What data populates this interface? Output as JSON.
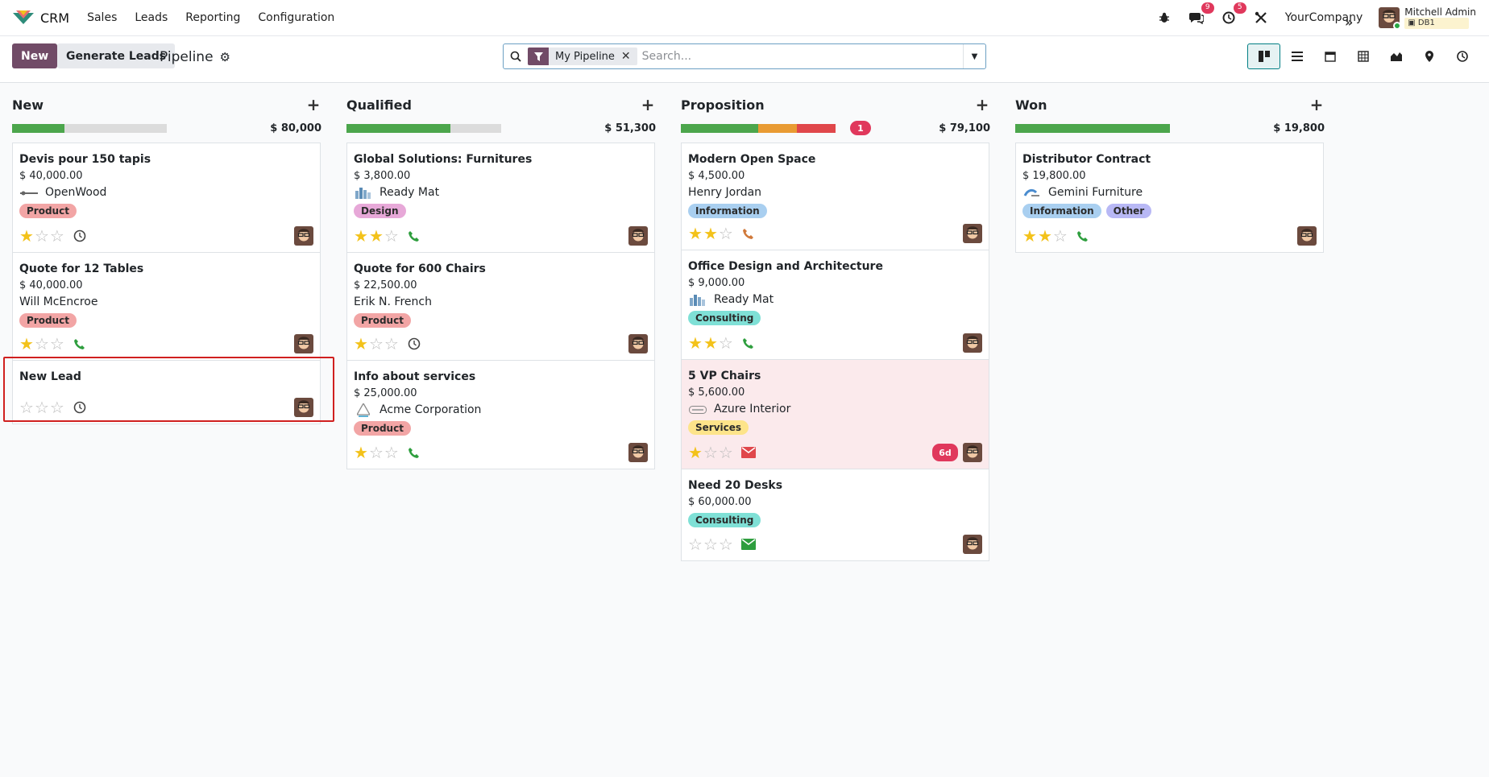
{
  "navbar": {
    "app_name": "CRM",
    "menu": [
      "Sales",
      "Leads",
      "Reporting",
      "Configuration"
    ],
    "messages_count": "9",
    "activities_count": "5",
    "company": "YourCompany",
    "user_name": "Mitchell Admin",
    "db": "DB1"
  },
  "control": {
    "new_label": "New",
    "generate_label": "Generate Leads",
    "breadcrumb": "Pipeline",
    "facet_label": "My Pipeline",
    "search_placeholder": "Search..."
  },
  "colors": {
    "brand": "#714b67",
    "green": "#4ca64c",
    "orange": "#e99b33",
    "red": "#e0474b",
    "grey": "#dcdcdc",
    "badge": "#e0385c"
  },
  "columns": [
    {
      "title": "New",
      "total": "$ 80,000",
      "progress": [
        {
          "color": "#4ca64c",
          "fraction": 0.34
        }
      ],
      "count_badge": "",
      "cards": [
        {
          "title": "Devis pour 150 tapis",
          "amount": "$ 40,000.00",
          "partner": "OpenWood",
          "partner_logo": "openwood-logo",
          "tags": [
            {
              "label": "Product",
              "color": "#f2a5a5"
            }
          ],
          "stars": 1,
          "activity": "clock-icon"
        },
        {
          "title": "Quote for 12 Tables",
          "amount": "$ 40,000.00",
          "partner": "Will McEncroe",
          "partner_logo": "",
          "tags": [
            {
              "label": "Product",
              "color": "#f2a5a5"
            }
          ],
          "stars": 1,
          "activity": "phone-icon"
        },
        {
          "title": "New Lead",
          "amount": "",
          "partner": "",
          "partner_logo": "",
          "tags": [],
          "stars": 0,
          "activity": "clock-icon"
        }
      ]
    },
    {
      "title": "Qualified",
      "total": "$ 51,300",
      "progress": [
        {
          "color": "#4ca64c",
          "fraction": 0.67
        }
      ],
      "count_badge": "",
      "cards": [
        {
          "title": "Global Solutions: Furnitures",
          "amount": "$ 3,800.00",
          "partner": "Ready Mat",
          "partner_logo": "readymat-logo",
          "tags": [
            {
              "label": "Design",
              "color": "#e7a8d8"
            }
          ],
          "stars": 2,
          "activity": "phone-icon"
        },
        {
          "title": "Quote for 600 Chairs",
          "amount": "$ 22,500.00",
          "partner": "Erik N. French",
          "partner_logo": "",
          "tags": [
            {
              "label": "Product",
              "color": "#f2a5a5"
            }
          ],
          "stars": 1,
          "activity": "clock-icon"
        },
        {
          "title": "Info about services",
          "amount": "$ 25,000.00",
          "partner": "Acme Corporation",
          "partner_logo": "acme-logo",
          "tags": [
            {
              "label": "Product",
              "color": "#f2a5a5"
            }
          ],
          "stars": 1,
          "activity": "phone-icon"
        }
      ]
    },
    {
      "title": "Proposition",
      "total": "$ 79,100",
      "progress": [
        {
          "color": "#4ca64c",
          "fraction": 0.5
        },
        {
          "color": "#e99b33",
          "fraction": 0.25
        },
        {
          "color": "#e0474b",
          "fraction": 0.25
        }
      ],
      "count_badge": "1",
      "cards": [
        {
          "title": "Modern Open Space",
          "amount": "$ 4,500.00",
          "partner": "Henry Jordan",
          "partner_logo": "",
          "tags": [
            {
              "label": "Information",
              "color": "#a9cff0"
            }
          ],
          "stars": 2,
          "activity": "phone-orange-icon"
        },
        {
          "title": "Office Design and Architecture",
          "amount": "$ 9,000.00",
          "partner": "Ready Mat",
          "partner_logo": "readymat-logo",
          "tags": [
            {
              "label": "Consulting",
              "color": "#7fe0d6"
            }
          ],
          "stars": 2,
          "activity": "phone-icon"
        },
        {
          "title": "5 VP Chairs",
          "amount": "$ 5,600.00",
          "partner": "Azure Interior",
          "partner_logo": "azure-logo",
          "tags": [
            {
              "label": "Services",
              "color": "#fde48a"
            }
          ],
          "stars": 1,
          "activity": "envelope-red-icon",
          "overdue": "6d",
          "highlight": true
        },
        {
          "title": "Need 20 Desks",
          "amount": "$ 60,000.00",
          "partner": "",
          "partner_logo": "",
          "tags": [
            {
              "label": "Consulting",
              "color": "#7fe0d6"
            }
          ],
          "stars": 0,
          "activity": "envelope-green-icon"
        }
      ]
    },
    {
      "title": "Won",
      "total": "$ 19,800",
      "progress": [
        {
          "color": "#4ca64c",
          "fraction": 1.0
        }
      ],
      "count_badge": "",
      "cards": [
        {
          "title": "Distributor Contract",
          "amount": "$ 19,800.00",
          "partner": "Gemini Furniture",
          "partner_logo": "gemini-logo",
          "tags": [
            {
              "label": "Information",
              "color": "#a9cff0"
            },
            {
              "label": "Other",
              "color": "#b8b8f5"
            }
          ],
          "stars": 2,
          "activity": "phone-icon"
        }
      ]
    }
  ]
}
